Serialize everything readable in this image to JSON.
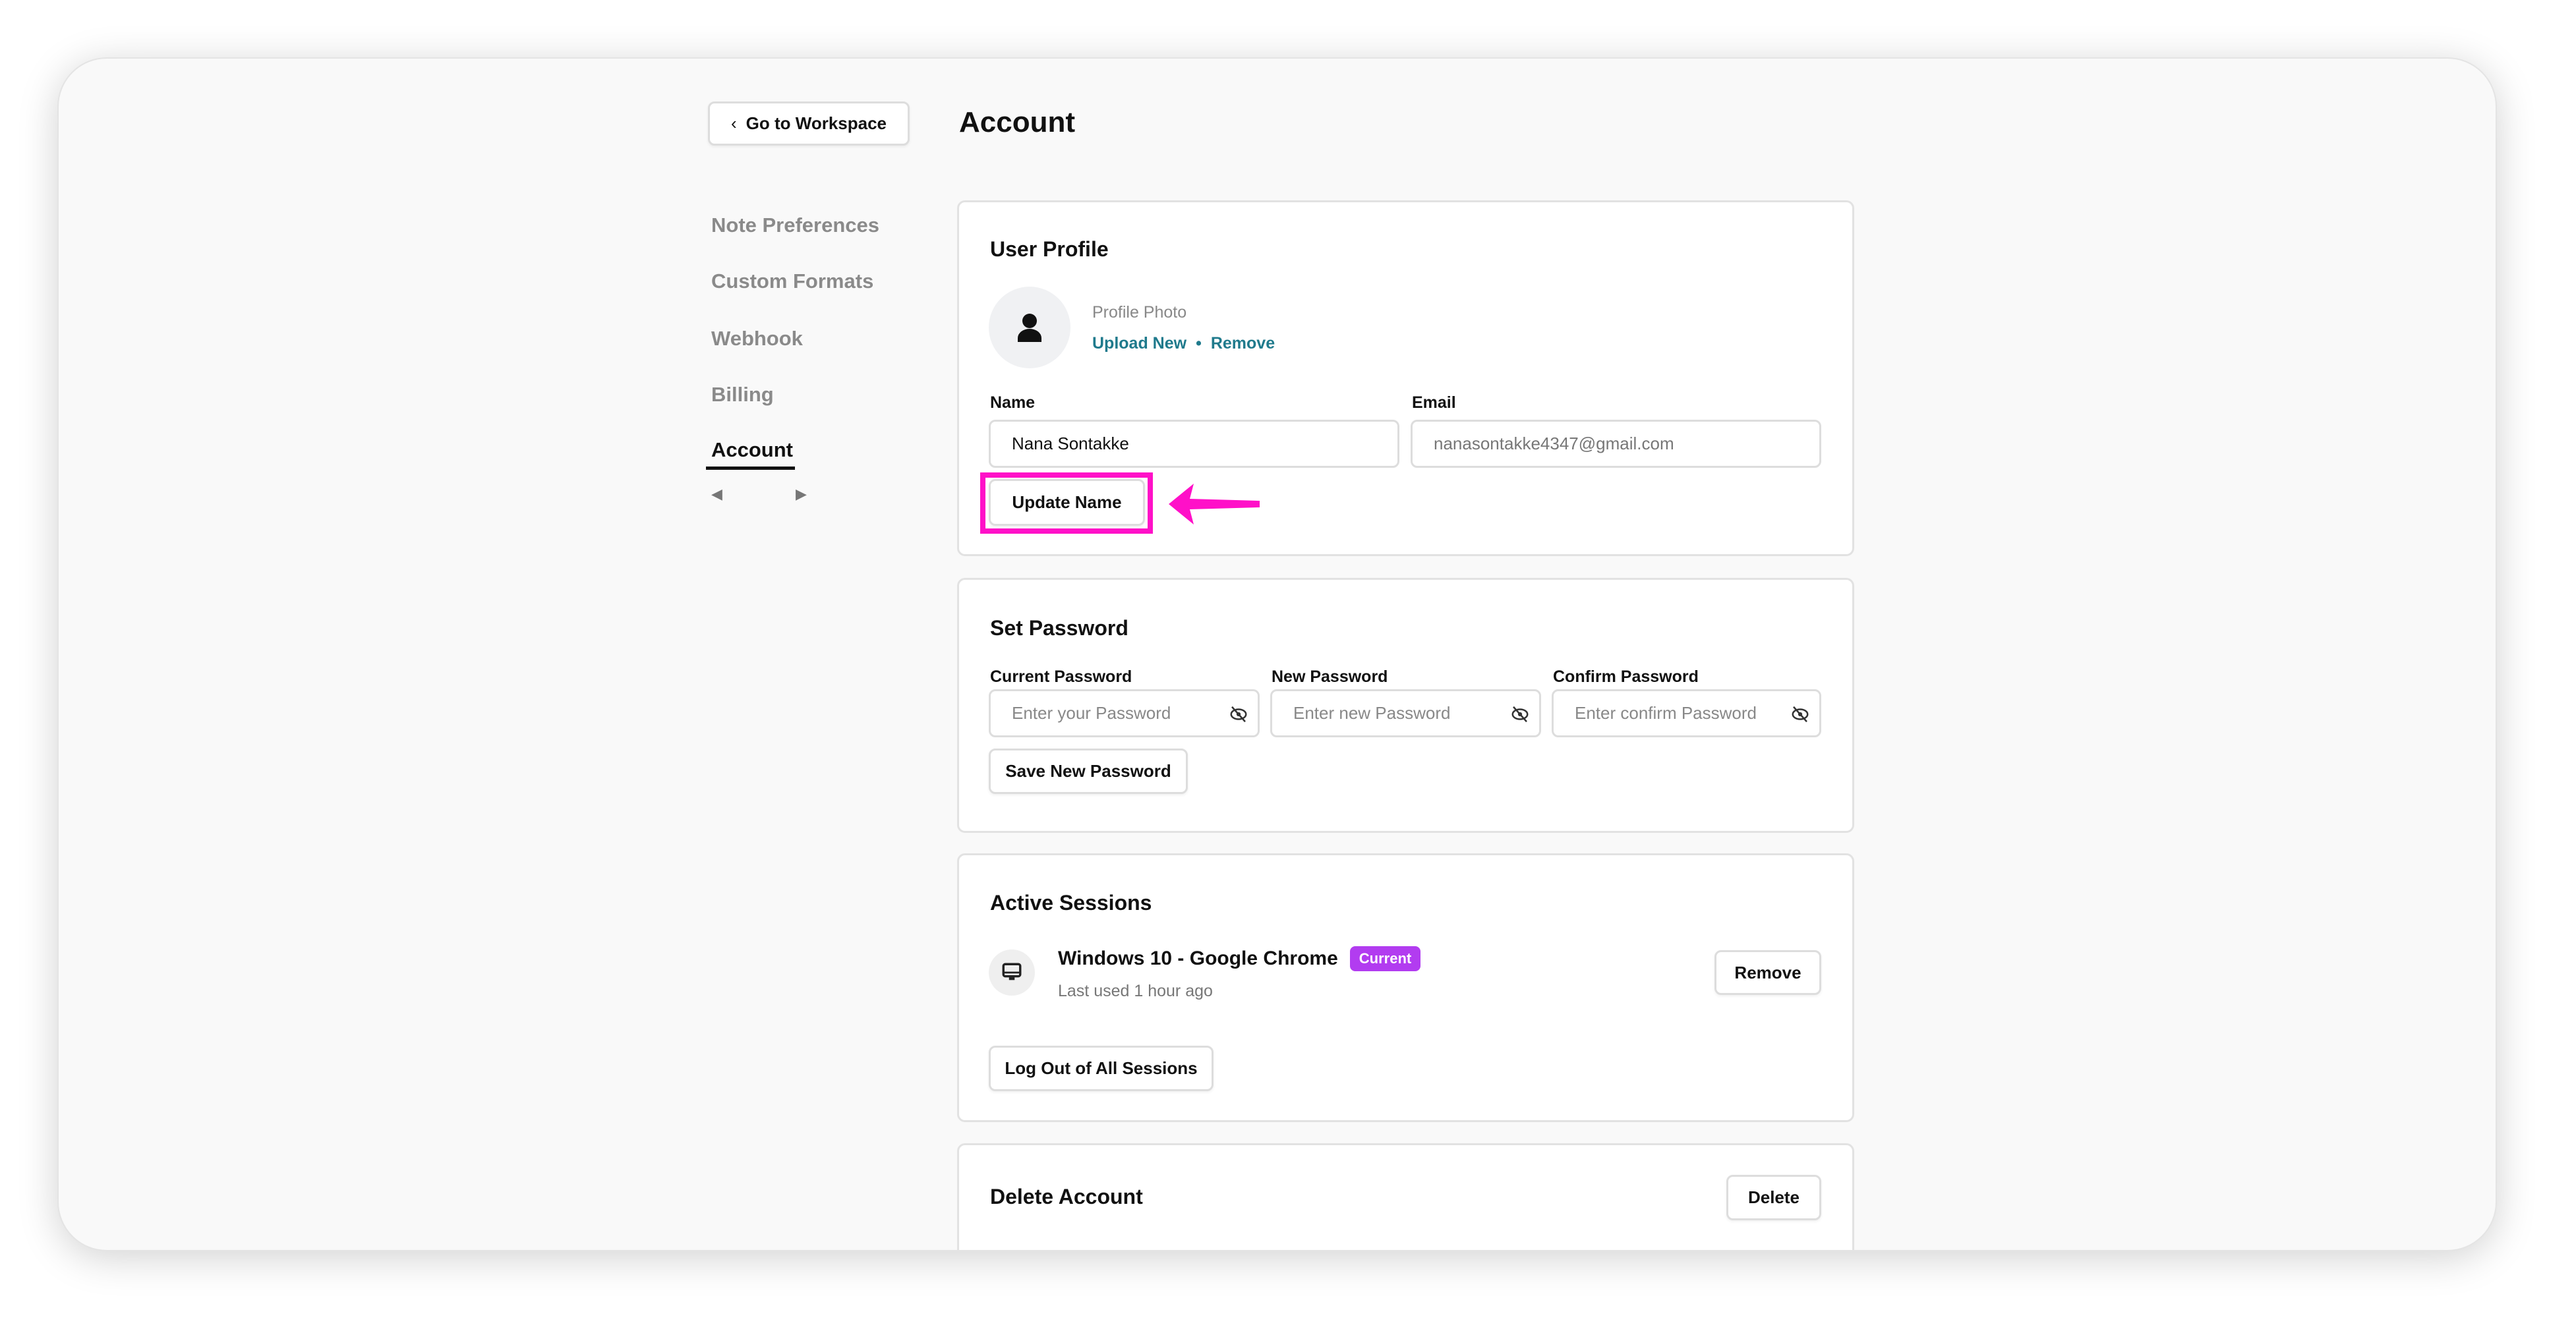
{
  "nav": {
    "back_label": "Go to Workspace",
    "page_title": "Account",
    "items": [
      "Note Preferences",
      "Custom Formats",
      "Webhook",
      "Billing",
      "Account"
    ],
    "active": "Account"
  },
  "profile": {
    "title": "User Profile",
    "photo_label": "Profile Photo",
    "upload_label": "Upload New",
    "separator": "•",
    "remove_label": "Remove",
    "name_label": "Name",
    "name_value": "Nana Sontakke",
    "email_label": "Email",
    "email_value": "nanasontakke4347@gmail.com",
    "update_label": "Update Name"
  },
  "password": {
    "title": "Set Password",
    "current_label": "Current Password",
    "current_placeholder": "Enter your Password",
    "new_label": "New Password",
    "new_placeholder": "Enter new Password",
    "confirm_label": "Confirm Password",
    "confirm_placeholder": "Enter confirm Password",
    "save_label": "Save New Password"
  },
  "sessions": {
    "title": "Active Sessions",
    "items": [
      {
        "name": "Windows 10 - Google Chrome",
        "badge": "Current",
        "last_used": "Last used 1 hour ago",
        "remove_label": "Remove"
      }
    ],
    "logout_all_label": "Log Out of All Sessions"
  },
  "delete": {
    "title": "Delete Account",
    "button_label": "Delete"
  },
  "colors": {
    "accent_link": "#1f7a8c",
    "badge": "#b23cf0",
    "annotation": "#ff10c8"
  }
}
